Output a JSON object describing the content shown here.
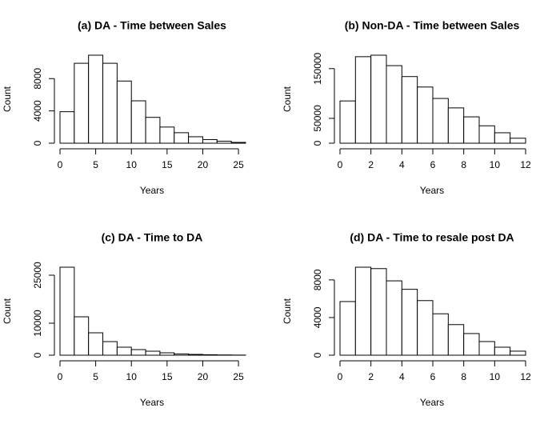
{
  "chart_data": [
    {
      "type": "histogram",
      "title": "(a) DA - Time between Sales",
      "xlabel": "Years",
      "ylabel": "Count",
      "bins": [
        0,
        2,
        4,
        6,
        8,
        10,
        12,
        14,
        16,
        18,
        20,
        22,
        24,
        26
      ],
      "values": [
        3900,
        9900,
        10900,
        9900,
        7700,
        5250,
        3200,
        2000,
        1300,
        800,
        450,
        250,
        100
      ],
      "xlim": [
        0,
        26
      ],
      "xticks": [
        0,
        5,
        10,
        15,
        20,
        25
      ],
      "ylim": [
        0,
        10900
      ],
      "yticks": [
        0,
        4000,
        8000
      ]
    },
    {
      "type": "histogram",
      "title": "(b) Non-DA - Time between Sales",
      "xlabel": "Years",
      "ylabel": "Count",
      "bins": [
        0,
        1,
        2,
        3,
        4,
        5,
        6,
        7,
        8,
        9,
        10,
        11,
        12
      ],
      "values": [
        85000,
        174000,
        177000,
        156000,
        134000,
        113000,
        90000,
        71000,
        53000,
        35000,
        21000,
        10000
      ],
      "xlim": [
        0,
        12
      ],
      "xticks": [
        0,
        2,
        4,
        6,
        8,
        10,
        12
      ],
      "ylim": [
        0,
        177000
      ],
      "yticks": [
        0,
        50000,
        150000
      ]
    },
    {
      "type": "histogram",
      "title": "(c) DA - Time to DA",
      "xlabel": "Years",
      "ylabel": "Count",
      "bins": [
        0,
        2,
        4,
        6,
        8,
        10,
        12,
        14,
        16,
        18,
        20,
        22,
        24,
        26
      ],
      "values": [
        27500,
        12000,
        7000,
        4250,
        2500,
        1750,
        1250,
        750,
        400,
        250,
        150,
        80,
        40
      ],
      "xlim": [
        0,
        26
      ],
      "xticks": [
        0,
        5,
        10,
        15,
        20,
        25
      ],
      "ylim": [
        0,
        27500
      ],
      "yticks": [
        0,
        10000,
        25000
      ]
    },
    {
      "type": "histogram",
      "title": "(d) DA - Time to resale post DA",
      "xlabel": "Years",
      "ylabel": "Count",
      "bins": [
        0,
        1,
        2,
        3,
        4,
        5,
        6,
        7,
        8,
        9,
        10,
        11,
        12
      ],
      "values": [
        5700,
        9350,
        9200,
        7900,
        7000,
        5800,
        4400,
        3250,
        2300,
        1450,
        850,
        430
      ],
      "xlim": [
        0,
        12
      ],
      "xticks": [
        0,
        2,
        4,
        6,
        8,
        10,
        12
      ],
      "ylim": [
        0,
        9350
      ],
      "yticks": [
        0,
        4000,
        8000
      ]
    }
  ]
}
